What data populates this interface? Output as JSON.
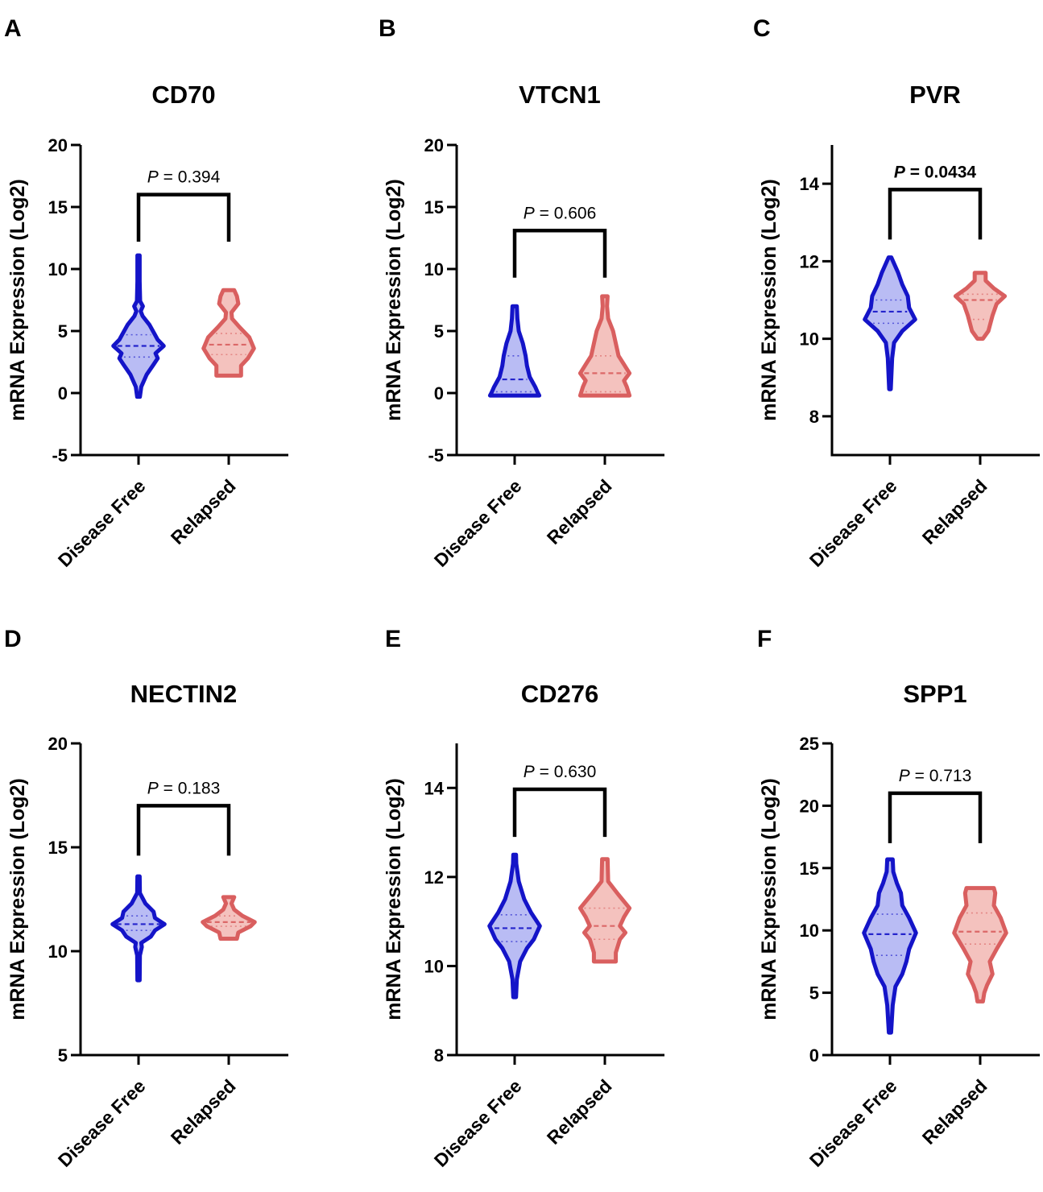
{
  "colors": {
    "disease_free": {
      "stroke": "#1414c8",
      "fill": "#b9bcf4"
    },
    "relapsed": {
      "stroke": "#d95f5f",
      "fill": "#f4c2be"
    },
    "axis": "#000000"
  },
  "chart_data": [
    {
      "type": "violin",
      "panel": "A",
      "title": "CD70",
      "ylabel": "mRNA Expression (Log2)",
      "ylim": [
        -5,
        20
      ],
      "yticks": [
        -5,
        0,
        5,
        10,
        15,
        20
      ],
      "categories": [
        "Disease Free",
        "Relapsed"
      ],
      "p_value": {
        "prefix": "P",
        "text": " = 0.394",
        "bold": false,
        "bracket_y": 16.0,
        "leg_bottom": 12.2
      },
      "series": [
        {
          "category": "Disease Free",
          "median": 3.8,
          "q1": 2.9,
          "q3": 4.7,
          "density": [
            [
              -0.3,
              0.05
            ],
            [
              0.5,
              0.1
            ],
            [
              1.5,
              0.3
            ],
            [
              2.3,
              0.55
            ],
            [
              2.8,
              0.7
            ],
            [
              3.2,
              0.62
            ],
            [
              3.8,
              0.92
            ],
            [
              4.3,
              0.7
            ],
            [
              4.7,
              0.6
            ],
            [
              5.5,
              0.4
            ],
            [
              6.2,
              0.15
            ],
            [
              6.6,
              0.08
            ],
            [
              7.0,
              0.16
            ],
            [
              7.4,
              0.06
            ],
            [
              9.0,
              0.04
            ],
            [
              11.1,
              0.04
            ]
          ]
        },
        {
          "category": "Relapsed",
          "median": 3.9,
          "q1": 3.1,
          "q3": 4.8,
          "density": [
            [
              1.4,
              0.45
            ],
            [
              2.2,
              0.45
            ],
            [
              2.8,
              0.7
            ],
            [
              3.6,
              0.92
            ],
            [
              4.5,
              0.75
            ],
            [
              5.3,
              0.4
            ],
            [
              6.0,
              0.12
            ],
            [
              6.5,
              0.1
            ],
            [
              7.2,
              0.35
            ],
            [
              7.8,
              0.3
            ],
            [
              8.3,
              0.2
            ]
          ]
        }
      ]
    },
    {
      "type": "violin",
      "panel": "B",
      "title": "VTCN1",
      "ylabel": "mRNA Expression (Log2)",
      "ylim": [
        -5,
        20
      ],
      "yticks": [
        -5,
        0,
        5,
        10,
        15,
        20
      ],
      "categories": [
        "Disease Free",
        "Relapsed"
      ],
      "p_value": {
        "prefix": "P",
        "text": " = 0.606",
        "bold": false,
        "bracket_y": 13.1,
        "leg_bottom": 9.3
      },
      "series": [
        {
          "category": "Disease Free",
          "median": 1.1,
          "q1": 0.1,
          "q3": 3.0,
          "density": [
            [
              -0.2,
              0.9
            ],
            [
              0.0,
              0.85
            ],
            [
              0.5,
              0.75
            ],
            [
              1.3,
              0.55
            ],
            [
              2.2,
              0.45
            ],
            [
              3.0,
              0.4
            ],
            [
              4.0,
              0.3
            ],
            [
              5.0,
              0.15
            ],
            [
              6.0,
              0.1
            ],
            [
              7.0,
              0.08
            ]
          ]
        },
        {
          "category": "Relapsed",
          "median": 1.6,
          "q1": 0.1,
          "q3": 3.0,
          "density": [
            [
              -0.2,
              0.9
            ],
            [
              0.5,
              0.8
            ],
            [
              1.0,
              0.7
            ],
            [
              1.6,
              0.9
            ],
            [
              2.3,
              0.7
            ],
            [
              3.0,
              0.5
            ],
            [
              4.0,
              0.4
            ],
            [
              5.0,
              0.3
            ],
            [
              6.0,
              0.12
            ],
            [
              7.0,
              0.08
            ],
            [
              7.8,
              0.1
            ]
          ]
        }
      ]
    },
    {
      "type": "violin",
      "panel": "C",
      "title": "PVR",
      "ylabel": "mRNA Expression (Log2)",
      "ylim": [
        7,
        15
      ],
      "yticks": [
        8,
        10,
        12,
        14
      ],
      "categories": [
        "Disease Free",
        "Relapsed"
      ],
      "p_value": {
        "prefix": "P",
        "text": " = 0.0434",
        "bold": true,
        "bracket_y": 13.85,
        "leg_bottom": 12.56
      },
      "series": [
        {
          "category": "Disease Free",
          "median": 10.7,
          "q1": 10.4,
          "q3": 11.0,
          "density": [
            [
              8.7,
              0.03
            ],
            [
              9.5,
              0.08
            ],
            [
              9.9,
              0.15
            ],
            [
              10.2,
              0.45
            ],
            [
              10.5,
              0.92
            ],
            [
              10.8,
              0.7
            ],
            [
              11.1,
              0.65
            ],
            [
              11.4,
              0.45
            ],
            [
              11.7,
              0.3
            ],
            [
              12.1,
              0.05
            ]
          ]
        },
        {
          "category": "Relapsed",
          "median": 11.0,
          "q1": 10.5,
          "q3": 11.15,
          "density": [
            [
              10.0,
              0.1
            ],
            [
              10.2,
              0.3
            ],
            [
              10.6,
              0.45
            ],
            [
              10.9,
              0.6
            ],
            [
              11.1,
              0.9
            ],
            [
              11.3,
              0.5
            ],
            [
              11.5,
              0.2
            ],
            [
              11.7,
              0.2
            ]
          ]
        }
      ]
    },
    {
      "type": "violin",
      "panel": "D",
      "title": "NECTIN2",
      "ylabel": "mRNA Expression (Log2)",
      "ylim": [
        5,
        20
      ],
      "yticks": [
        5,
        10,
        15,
        20
      ],
      "categories": [
        "Disease Free",
        "Relapsed"
      ],
      "p_value": {
        "prefix": "P",
        "text": " = 0.183",
        "bold": false,
        "bracket_y": 17.0,
        "leg_bottom": 14.6
      },
      "series": [
        {
          "category": "Disease Free",
          "median": 11.3,
          "q1": 11.0,
          "q3": 11.7,
          "density": [
            [
              8.6,
              0.04
            ],
            [
              9.8,
              0.05
            ],
            [
              10.2,
              0.12
            ],
            [
              10.4,
              0.1
            ],
            [
              10.7,
              0.45
            ],
            [
              11.0,
              0.6
            ],
            [
              11.3,
              0.95
            ],
            [
              11.6,
              0.6
            ],
            [
              11.9,
              0.55
            ],
            [
              12.3,
              0.25
            ],
            [
              12.8,
              0.05
            ],
            [
              13.6,
              0.04
            ]
          ]
        },
        {
          "category": "Relapsed",
          "median": 11.4,
          "q1": 11.2,
          "q3": 11.7,
          "density": [
            [
              10.6,
              0.3
            ],
            [
              10.9,
              0.35
            ],
            [
              11.2,
              0.8
            ],
            [
              11.4,
              0.95
            ],
            [
              11.7,
              0.5
            ],
            [
              12.0,
              0.2
            ],
            [
              12.3,
              0.1
            ],
            [
              12.6,
              0.2
            ]
          ]
        }
      ]
    },
    {
      "type": "violin",
      "panel": "E",
      "title": "CD276",
      "ylabel": "mRNA Expression (Log2)",
      "ylim": [
        8,
        15
      ],
      "yticks": [
        8,
        10,
        12,
        14
      ],
      "categories": [
        "Disease Free",
        "Relapsed"
      ],
      "p_value": {
        "prefix": "P",
        "text": " = 0.630",
        "bold": false,
        "bracket_y": 13.97,
        "leg_bottom": 12.9
      },
      "series": [
        {
          "category": "Disease Free",
          "median": 10.85,
          "q1": 10.55,
          "q3": 11.15,
          "density": [
            [
              9.3,
              0.05
            ],
            [
              9.7,
              0.08
            ],
            [
              10.1,
              0.2
            ],
            [
              10.4,
              0.45
            ],
            [
              10.6,
              0.7
            ],
            [
              10.9,
              0.92
            ],
            [
              11.2,
              0.6
            ],
            [
              11.5,
              0.35
            ],
            [
              11.9,
              0.15
            ],
            [
              12.3,
              0.06
            ],
            [
              12.5,
              0.05
            ]
          ]
        },
        {
          "category": "Relapsed",
          "median": 10.9,
          "q1": 10.6,
          "q3": 11.3,
          "density": [
            [
              10.1,
              0.4
            ],
            [
              10.3,
              0.4
            ],
            [
              10.6,
              0.55
            ],
            [
              10.75,
              0.75
            ],
            [
              10.9,
              0.55
            ],
            [
              11.1,
              0.7
            ],
            [
              11.3,
              0.9
            ],
            [
              11.6,
              0.5
            ],
            [
              11.9,
              0.12
            ],
            [
              12.4,
              0.1
            ]
          ]
        }
      ]
    },
    {
      "type": "violin",
      "panel": "F",
      "title": "SPP1",
      "ylabel": "mRNA Expression (Log2)",
      "ylim": [
        0,
        25
      ],
      "yticks": [
        0,
        5,
        10,
        15,
        20,
        25
      ],
      "categories": [
        "Disease Free",
        "Relapsed"
      ],
      "p_value": {
        "prefix": "P",
        "text": " = 0.713",
        "bold": false,
        "bracket_y": 21.0,
        "leg_bottom": 17.0
      },
      "series": [
        {
          "category": "Disease Free",
          "median": 9.7,
          "q1": 8.0,
          "q3": 11.3,
          "density": [
            [
              1.8,
              0.04
            ],
            [
              4.0,
              0.1
            ],
            [
              5.5,
              0.2
            ],
            [
              6.5,
              0.45
            ],
            [
              7.5,
              0.6
            ],
            [
              8.5,
              0.7
            ],
            [
              9.8,
              0.95
            ],
            [
              11.0,
              0.7
            ],
            [
              12.0,
              0.45
            ],
            [
              13.0,
              0.4
            ],
            [
              13.8,
              0.25
            ],
            [
              14.7,
              0.12
            ],
            [
              15.7,
              0.1
            ]
          ]
        },
        {
          "category": "Relapsed",
          "median": 9.9,
          "q1": 8.9,
          "q3": 11.4,
          "density": [
            [
              4.3,
              0.1
            ],
            [
              5.0,
              0.15
            ],
            [
              5.6,
              0.25
            ],
            [
              6.5,
              0.45
            ],
            [
              7.5,
              0.35
            ],
            [
              8.5,
              0.6
            ],
            [
              9.8,
              0.95
            ],
            [
              11.0,
              0.75
            ],
            [
              12.0,
              0.5
            ],
            [
              13.0,
              0.55
            ],
            [
              13.4,
              0.5
            ]
          ]
        }
      ]
    }
  ]
}
